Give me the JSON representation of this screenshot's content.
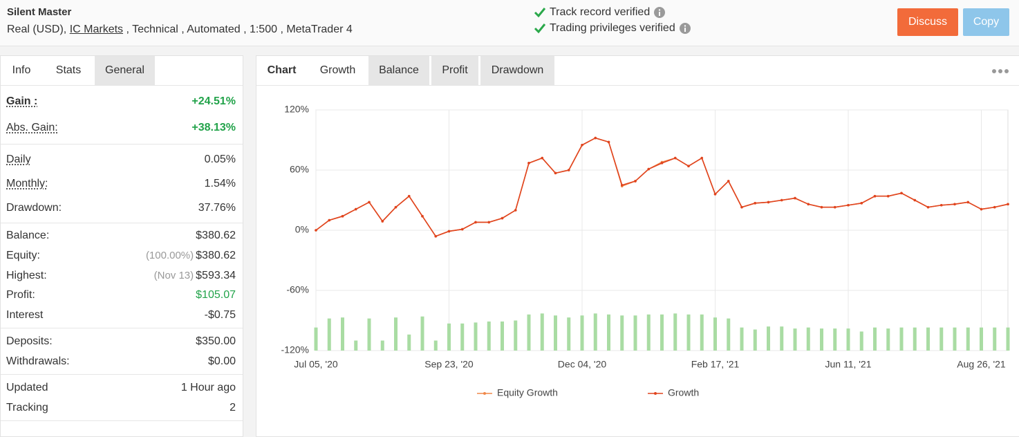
{
  "header": {
    "title": "Silent Master",
    "subtitle": [
      "Real (USD), ",
      "IC Markets",
      " , Technical , Automated , 1:500 , MetaTrader 4"
    ],
    "verified": [
      "Track record verified",
      "Trading privileges verified"
    ],
    "buttons": [
      "Discuss",
      "Copy"
    ]
  },
  "stats_tabs": [
    "Info",
    "Stats",
    "General"
  ],
  "stats": [
    [
      {
        "label": "Gain :",
        "value": "+24.51%",
        "color": "#22a34a"
      },
      {
        "label": "Abs. Gain:",
        "value": "+38.13%",
        "color": "#22a34a"
      }
    ],
    [
      {
        "label": "Daily",
        "value": "0.05%"
      },
      {
        "label": "Monthly:",
        "value": "1.54%"
      },
      {
        "label": "Drawdown:",
        "value": "37.76%"
      }
    ],
    [
      {
        "label": "Balance:",
        "value": "$380.62"
      },
      {
        "label": "Equity:",
        "note": "(100.00%)",
        "value": "$380.62"
      },
      {
        "label": "Highest:",
        "note": "(Nov 13)",
        "value": "$593.34"
      },
      {
        "label": "Profit:",
        "value": "$105.07",
        "color": "#22a34a"
      },
      {
        "label": "Interest",
        "value": "-$0.75"
      }
    ],
    [
      {
        "label": "Deposits:",
        "value": "$350.00"
      },
      {
        "label": "Withdrawals:",
        "value": "$0.00"
      }
    ],
    [
      {
        "label": "Updated",
        "value": "1 Hour ago"
      },
      {
        "label": "Tracking",
        "value": "2"
      }
    ]
  ],
  "chart_tabs": [
    "Chart",
    "Growth",
    "Balance",
    "Profit",
    "Drawdown"
  ],
  "chart_data": {
    "type": "line",
    "categories": [
      "Jul 05, '20",
      null,
      null,
      null,
      null,
      null,
      null,
      null,
      null,
      null,
      "Sep 23, '20",
      null,
      null,
      null,
      null,
      null,
      null,
      null,
      null,
      null,
      "Dec 04, '20",
      null,
      null,
      null,
      null,
      null,
      null,
      null,
      null,
      null,
      "Feb 17, '21",
      null,
      null,
      null,
      null,
      null,
      null,
      null,
      null,
      null,
      "Jun 11, '21",
      null,
      null,
      null,
      null,
      null,
      null,
      null,
      null,
      null,
      "Aug 26, '21",
      null,
      null
    ],
    "ylim": [
      -120,
      120
    ],
    "yticks": [
      {
        "value": 120,
        "label": "120%"
      },
      {
        "value": 60,
        "label": "60%"
      },
      {
        "value": 0,
        "label": "0%"
      },
      {
        "value": -60,
        "label": "-60%"
      },
      {
        "value": -120,
        "label": "-120%"
      }
    ],
    "grid": true,
    "series": [
      {
        "type": "bar",
        "color": "#a9dca3",
        "values": [
          -97,
          -88,
          -87,
          -110,
          -88,
          -110,
          -87,
          -104,
          -86,
          -110,
          -93,
          -93,
          -92,
          -91,
          -91,
          -90,
          -84,
          -83,
          -85,
          -87,
          -85,
          -83,
          -84,
          -85,
          -85,
          -84,
          -84,
          -83,
          -84,
          -84,
          -87,
          -88,
          -97,
          -99,
          -96,
          -96,
          -98,
          -97,
          -98,
          -98,
          -98,
          -101,
          -97,
          -98,
          -97,
          -97,
          -97,
          -97,
          -97,
          -97,
          -97,
          -97,
          -97
        ]
      },
      {
        "name": "Equity Growth",
        "color": "#f0884a",
        "values": [
          0,
          10,
          14,
          21,
          28,
          9,
          23,
          34,
          14,
          -6,
          -1,
          1,
          8,
          8,
          12,
          20,
          67,
          72,
          57,
          60,
          85,
          92,
          88,
          44,
          49,
          61,
          68,
          72,
          64,
          72,
          36,
          49,
          23,
          27,
          28,
          30,
          32,
          26,
          23,
          23,
          25,
          27,
          34,
          34,
          37,
          30,
          23,
          25,
          26,
          28,
          21,
          23,
          26
        ]
      },
      {
        "name": "Growth",
        "color": "#e0441f",
        "values": [
          0,
          10,
          14,
          21,
          28,
          9,
          23,
          34,
          14,
          -6,
          -1,
          1,
          8,
          8,
          12,
          20,
          67,
          72,
          57,
          60,
          85,
          92,
          88,
          45,
          49,
          61,
          67,
          72,
          64,
          72,
          36,
          49,
          23,
          27,
          28,
          30,
          32,
          26,
          23,
          23,
          25,
          27,
          34,
          34,
          37,
          30,
          23,
          25,
          26,
          28,
          21,
          23,
          26
        ]
      }
    ]
  }
}
